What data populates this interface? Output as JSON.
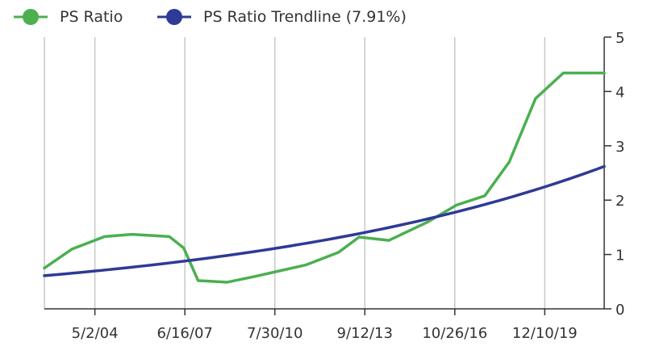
{
  "chart_data": {
    "type": "line",
    "x_ticks": [
      "5/2/04",
      "6/16/07",
      "7/30/10",
      "9/12/13",
      "10/26/16",
      "12/10/19"
    ],
    "y_ticks": [
      "0",
      "1",
      "2",
      "3",
      "4",
      "5"
    ],
    "ylim": [
      0,
      5
    ],
    "x_domain": [
      "2002-08-01",
      "2022-01-01"
    ],
    "y_axis_side": "right",
    "grid": "vertical",
    "legend": {
      "position": "top-left"
    },
    "series": [
      {
        "name": "PS Ratio",
        "color": "#4caf50",
        "x": [
          "2002-08-01",
          "2003-07-18",
          "2004-09-01",
          "2005-08-15",
          "2006-12-01",
          "2007-06-01",
          "2007-12-01",
          "2008-12-05",
          "2009-12-01",
          "2010-09-01",
          "2011-09-01",
          "2012-10-15",
          "2013-07-01",
          "2014-07-15",
          "2015-11-20",
          "2016-11-18",
          "2017-11-10",
          "2018-09-15",
          "2019-08-15",
          "2020-08-01",
          "2021-08-15",
          "2022-01-01"
        ],
        "values": [
          0.75,
          1.1,
          1.33,
          1.37,
          1.33,
          1.12,
          0.52,
          0.49,
          0.6,
          0.69,
          0.81,
          1.04,
          1.32,
          1.26,
          1.6,
          1.91,
          2.08,
          2.7,
          3.87,
          4.34,
          4.34,
          4.34
        ]
      },
      {
        "name": "PS Ratio Trendline (7.91%)",
        "color": "#2e3a96",
        "x_start": "2002-08-01",
        "x_end": "2022-01-01",
        "start_value": 0.61,
        "end_value": 2.62
      }
    ]
  }
}
